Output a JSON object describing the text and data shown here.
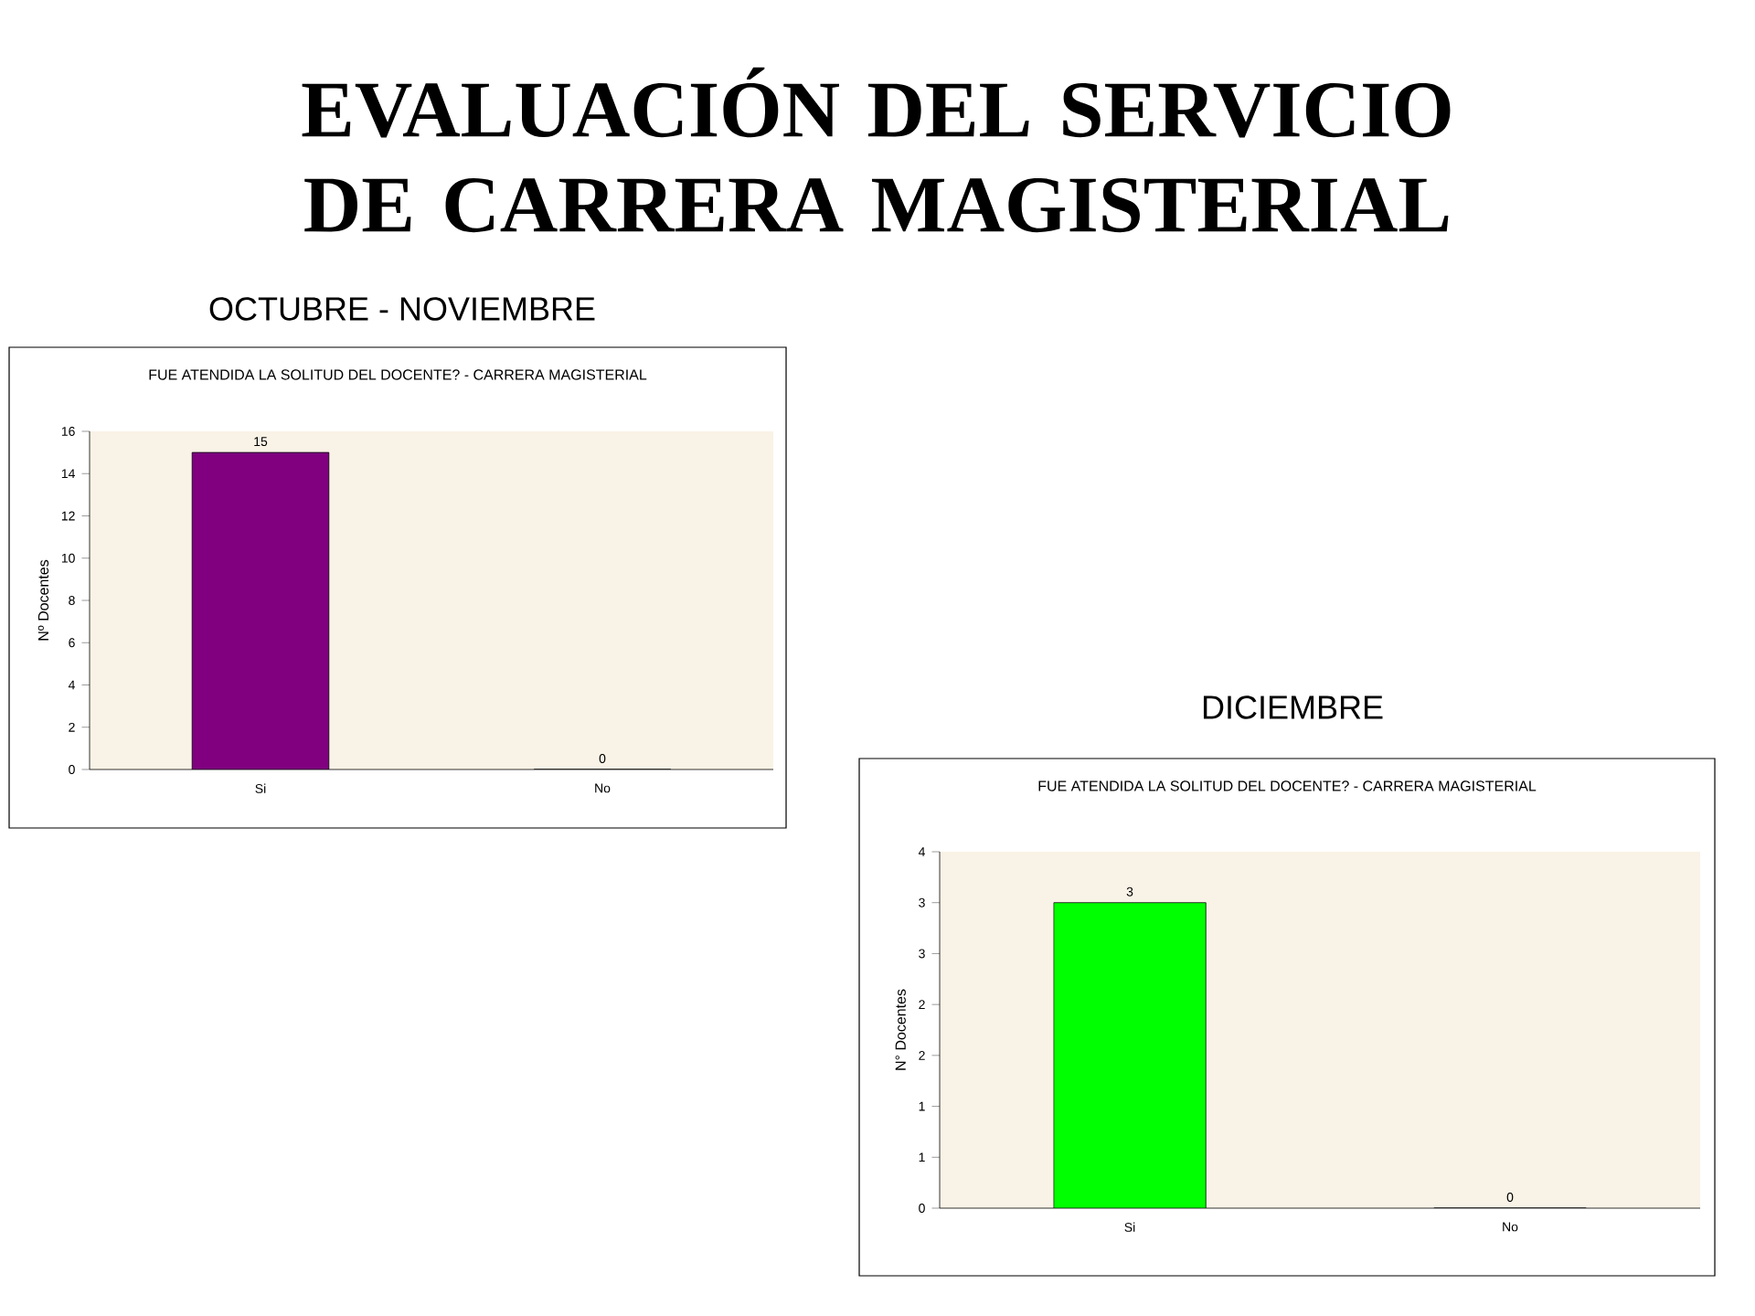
{
  "chart_data": [
    {
      "type": "bar",
      "title": "FUE ATENDIDA LA SOLITUD DEL DOCENTE? - CARRERA MAGISTERIAL",
      "subtitle": "OCTUBRE - NOVIEMBRE",
      "annotations": [
        "EVALUACIÓN DEL SERVICIO DE CARRERA MAGISTERIAL"
      ],
      "ylabel": "Nº Docentes",
      "categories": [
        "Si",
        "No"
      ],
      "values": [
        15,
        0
      ],
      "color": "#800080",
      "ylim": [
        0,
        16
      ],
      "yticks": [
        0,
        2,
        4,
        6,
        8,
        10,
        12,
        14,
        16
      ],
      "data_labels": true,
      "grid": false
    },
    {
      "type": "bar",
      "title": "FUE ATENDIDA LA SOLITUD DEL DOCENTE? - CARRERA MAGISTERIAL",
      "subtitle": "DICIEMBRE",
      "ylabel": "N° Docentes",
      "categories": [
        "Si",
        "No"
      ],
      "values": [
        3,
        0
      ],
      "color": "#00ff00",
      "ylim": [
        0,
        3.5
      ],
      "yticks": [
        0,
        {
          "value": 0.5,
          "label": "1"
        },
        1,
        {
          "value": 1.5,
          "label": "2"
        },
        2,
        {
          "value": 2.5,
          "label": "3"
        },
        3,
        {
          "value": 3.5,
          "label": "4"
        }
      ],
      "data_labels": true,
      "grid": false
    }
  ]
}
